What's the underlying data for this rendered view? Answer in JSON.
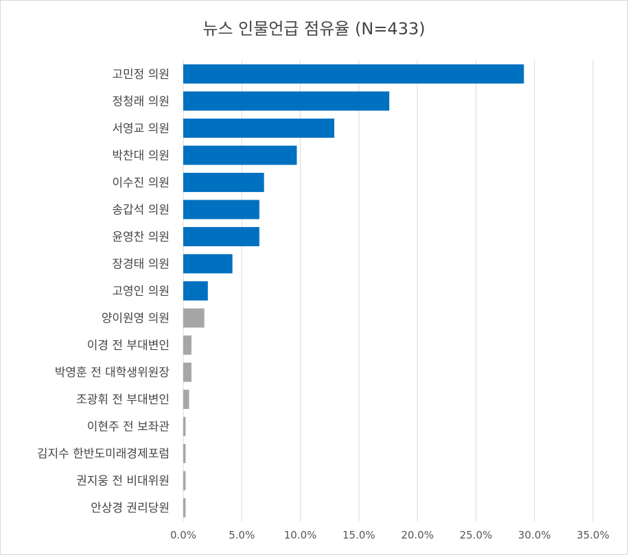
{
  "chart_data": {
    "type": "bar",
    "orientation": "horizontal",
    "title": "뉴스 인물언급 점유율 (N=433)",
    "categories": [
      "고민정 의원",
      "정청래 의원",
      "서영교 의원",
      "박찬대 의원",
      "이수진 의원",
      "송갑석 의원",
      "윤영찬 의원",
      "장경태 의원",
      "고영인 의원",
      "양이원영 의원",
      "이경 전 부대변인",
      "박영훈 전 대학생위원장",
      "조광휘 전 부대변인",
      "이현주 전 보좌관",
      "김지수 한반도미래경제포럼",
      "권지웅 전 비대위원",
      "안상경 권리당원"
    ],
    "values": [
      29.1,
      17.6,
      12.9,
      9.7,
      6.9,
      6.5,
      6.5,
      4.2,
      2.1,
      1.8,
      0.7,
      0.7,
      0.5,
      0.2,
      0.2,
      0.2,
      0.2
    ],
    "highlight_count": 9,
    "colors": {
      "highlight": "#0070c0",
      "other": "#a6a6a6",
      "grid": "#d9d9d9"
    },
    "xlim": [
      0,
      35
    ],
    "xticks": [
      "0.0%",
      "5.0%",
      "10.0%",
      "15.0%",
      "20.0%",
      "25.0%",
      "30.0%",
      "35.0%"
    ],
    "grid": true
  }
}
